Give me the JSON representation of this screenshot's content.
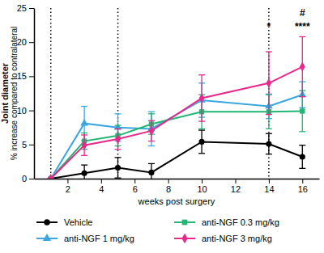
{
  "chart_data": {
    "type": "line",
    "x_label": "weeks post surgery",
    "y_label": [
      "Joint diameter",
      "% increase compared to contralateral"
    ],
    "x": [
      1,
      3,
      5,
      7,
      10,
      14,
      16
    ],
    "xlim": [
      0,
      17
    ],
    "xticks": [
      2,
      4,
      6,
      8,
      10,
      12,
      14,
      16
    ],
    "ylim": [
      0,
      25
    ],
    "yticks": [
      0,
      5,
      10,
      15,
      20,
      25
    ],
    "grid": false,
    "legend": "bottom",
    "vlines": [
      1,
      5,
      14
    ],
    "annotations": [
      {
        "text": "*",
        "x": 14,
        "y": 22.3
      },
      {
        "text": "#",
        "x": 16,
        "y": 24.3
      },
      {
        "text": "****",
        "x": 16,
        "y": 22.3
      }
    ],
    "series": [
      {
        "name": "Vehicle",
        "color": "#000000",
        "marker": "circle",
        "values": [
          0,
          0.8,
          1.6,
          0.9,
          5.4,
          5.1,
          3.2
        ],
        "errors": [
          0,
          1.2,
          1.5,
          1.3,
          1.7,
          1.5,
          1.7
        ]
      },
      {
        "name": "anti-NGF 1 mg/kg",
        "color": "#3aa6e0",
        "marker": "triangle",
        "values": [
          0,
          8.1,
          7.5,
          7.3,
          11.5,
          10.6,
          12.3
        ],
        "errors": [
          0,
          2.5,
          2.0,
          2.5,
          2.5,
          1.8,
          1.9
        ]
      },
      {
        "name": "anti-NGF 0.3 mg/kg",
        "color": "#22b573",
        "marker": "square",
        "values": [
          0,
          5.5,
          6.3,
          8.0,
          9.8,
          9.8,
          9.9
        ],
        "errors": [
          0,
          1.2,
          1.5,
          1.5,
          2.5,
          2.5,
          3.0
        ]
      },
      {
        "name": "anti-NGF 3 mg/kg",
        "color": "#e8288a",
        "marker": "diamond",
        "values": [
          0,
          4.9,
          5.8,
          7.0,
          11.8,
          14.0,
          16.4
        ],
        "errors": [
          0,
          1.5,
          1.5,
          1.5,
          3.4,
          4.6,
          4.4
        ]
      }
    ]
  }
}
